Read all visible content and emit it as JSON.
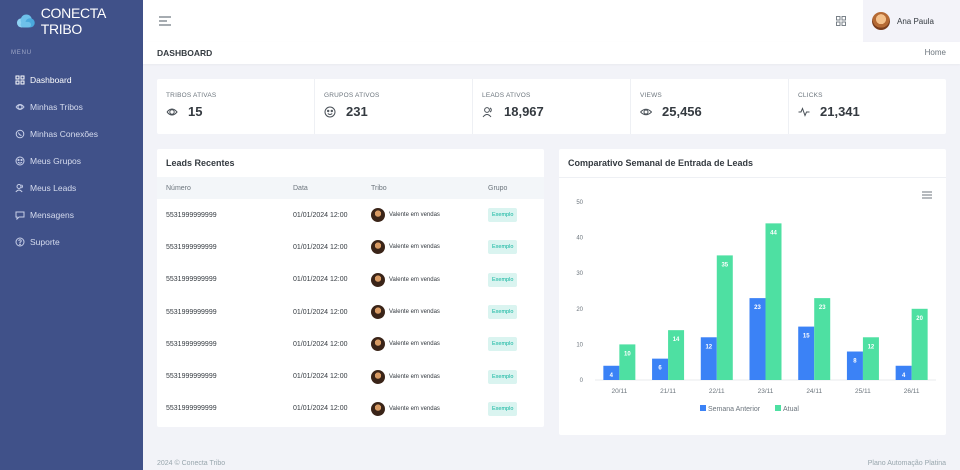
{
  "brand": {
    "name": "CONECTA TRIBO"
  },
  "sidebar": {
    "menu_title": "MENU",
    "items": [
      {
        "label": "Dashboard",
        "icon": "dashboard-icon",
        "active": true
      },
      {
        "label": "Minhas Tribos",
        "icon": "tribes-icon"
      },
      {
        "label": "Minhas Conexões",
        "icon": "whatsapp-icon"
      },
      {
        "label": "Meus Grupos",
        "icon": "groups-icon"
      },
      {
        "label": "Meus Leads",
        "icon": "users-icon"
      },
      {
        "label": "Mensagens",
        "icon": "message-icon"
      },
      {
        "label": "Suporte",
        "icon": "help-icon"
      }
    ]
  },
  "topbar": {
    "user_name": "Ana Paula"
  },
  "page": {
    "title": "DASHBOARD",
    "breadcrumb": "Home"
  },
  "stats": [
    {
      "label": "TRIBOS ATIVAS",
      "value": "15",
      "icon": "tribe-icon"
    },
    {
      "label": "GRUPOS ATIVOS",
      "value": "231",
      "icon": "groups-icon"
    },
    {
      "label": "LEADS ATIVOS",
      "value": "18,967",
      "icon": "users-icon"
    },
    {
      "label": "VIEWS",
      "value": "25,456",
      "icon": "eye-icon"
    },
    {
      "label": "CLICKS",
      "value": "21,341",
      "icon": "activity-icon"
    }
  ],
  "leads": {
    "title": "Leads Recentes",
    "columns": [
      "Número",
      "Data",
      "Tribo",
      "Grupo"
    ],
    "rows": [
      {
        "numero": "5531999999999",
        "data": "01/01/2024 12:00",
        "tribo": "Valente em vendas",
        "grupo": "Exemplo"
      },
      {
        "numero": "5531999999999",
        "data": "01/01/2024 12:00",
        "tribo": "Valente em vendas",
        "grupo": "Exemplo"
      },
      {
        "numero": "5531999999999",
        "data": "01/01/2024 12:00",
        "tribo": "Valente em vendas",
        "grupo": "Exemplo"
      },
      {
        "numero": "5531999999999",
        "data": "01/01/2024 12:00",
        "tribo": "Valente em vendas",
        "grupo": "Exemplo"
      },
      {
        "numero": "5531999999999",
        "data": "01/01/2024 12:00",
        "tribo": "Valente em vendas",
        "grupo": "Exemplo"
      },
      {
        "numero": "5531999999999",
        "data": "01/01/2024 12:00",
        "tribo": "Valente em vendas",
        "grupo": "Exemplo"
      },
      {
        "numero": "5531999999999",
        "data": "01/01/2024 12:00",
        "tribo": "Valente em vendas",
        "grupo": "Exemplo"
      }
    ]
  },
  "chart_card": {
    "title": "Comparativo Semanal de Entrada de Leads"
  },
  "chart_data": {
    "type": "bar",
    "categories": [
      "20/11",
      "21/11",
      "22/11",
      "23/11",
      "24/11",
      "25/11",
      "26/11"
    ],
    "series": [
      {
        "name": "Semana Anterior",
        "values": [
          4,
          6,
          12,
          23,
          15,
          8,
          4
        ],
        "color": "#3b82f6"
      },
      {
        "name": "Atual",
        "values": [
          10,
          14,
          35,
          44,
          23,
          12,
          20
        ],
        "color": "#4ee0a2"
      }
    ],
    "ylim": [
      0,
      50
    ],
    "yticks": [
      0,
      10,
      20,
      30,
      40,
      50
    ],
    "legend": "bottom",
    "grid": false
  },
  "footer": {
    "left": "2024 © Conecta Tribo",
    "right": "Plano Automação Platina"
  },
  "colors": {
    "sidebar": "#405189",
    "accent": "#0ab39c",
    "bar_prev": "#3b82f6",
    "bar_curr": "#4ee0a2"
  }
}
